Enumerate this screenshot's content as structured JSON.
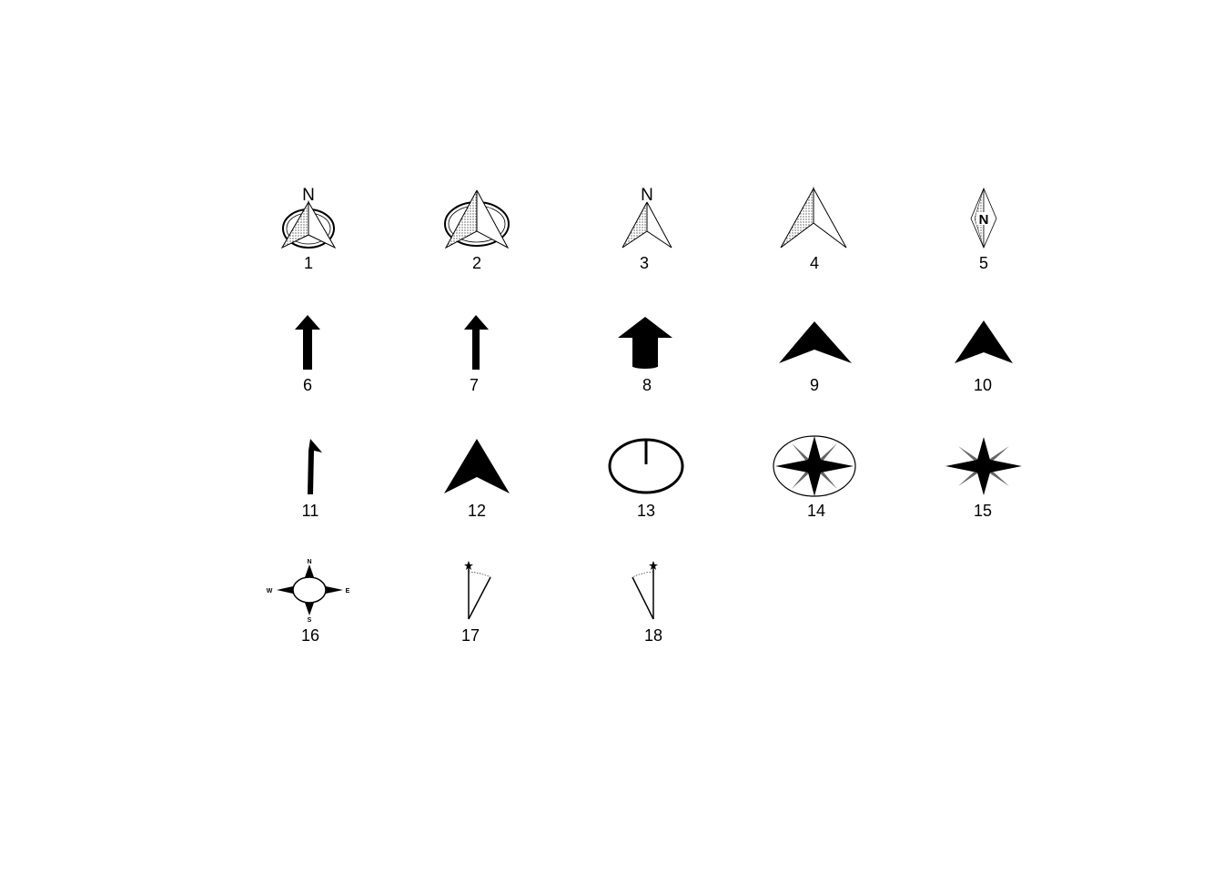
{
  "symbols": [
    {
      "id": "north-arrow-1",
      "number": "1",
      "letter": "N"
    },
    {
      "id": "north-arrow-2",
      "number": "2"
    },
    {
      "id": "north-arrow-3",
      "number": "3",
      "letter": "N"
    },
    {
      "id": "north-arrow-4",
      "number": "4"
    },
    {
      "id": "north-arrow-5",
      "number": "5",
      "letter": "N"
    },
    {
      "id": "north-arrow-6",
      "number": "6"
    },
    {
      "id": "north-arrow-7",
      "number": "7"
    },
    {
      "id": "north-arrow-8",
      "number": "8"
    },
    {
      "id": "north-arrow-9",
      "number": "9"
    },
    {
      "id": "north-arrow-10",
      "number": "10"
    },
    {
      "id": "north-arrow-11",
      "number": "11"
    },
    {
      "id": "north-arrow-12",
      "number": "12"
    },
    {
      "id": "north-arrow-13",
      "number": "13"
    },
    {
      "id": "north-arrow-14",
      "number": "14"
    },
    {
      "id": "north-arrow-15",
      "number": "15"
    },
    {
      "id": "north-arrow-16",
      "number": "16",
      "directions": [
        "N",
        "E",
        "S",
        "W"
      ]
    },
    {
      "id": "north-arrow-17",
      "number": "17"
    },
    {
      "id": "north-arrow-18",
      "number": "18"
    }
  ],
  "colors": {
    "ink": "#000000",
    "shade": "#888888",
    "background": "#ffffff"
  }
}
